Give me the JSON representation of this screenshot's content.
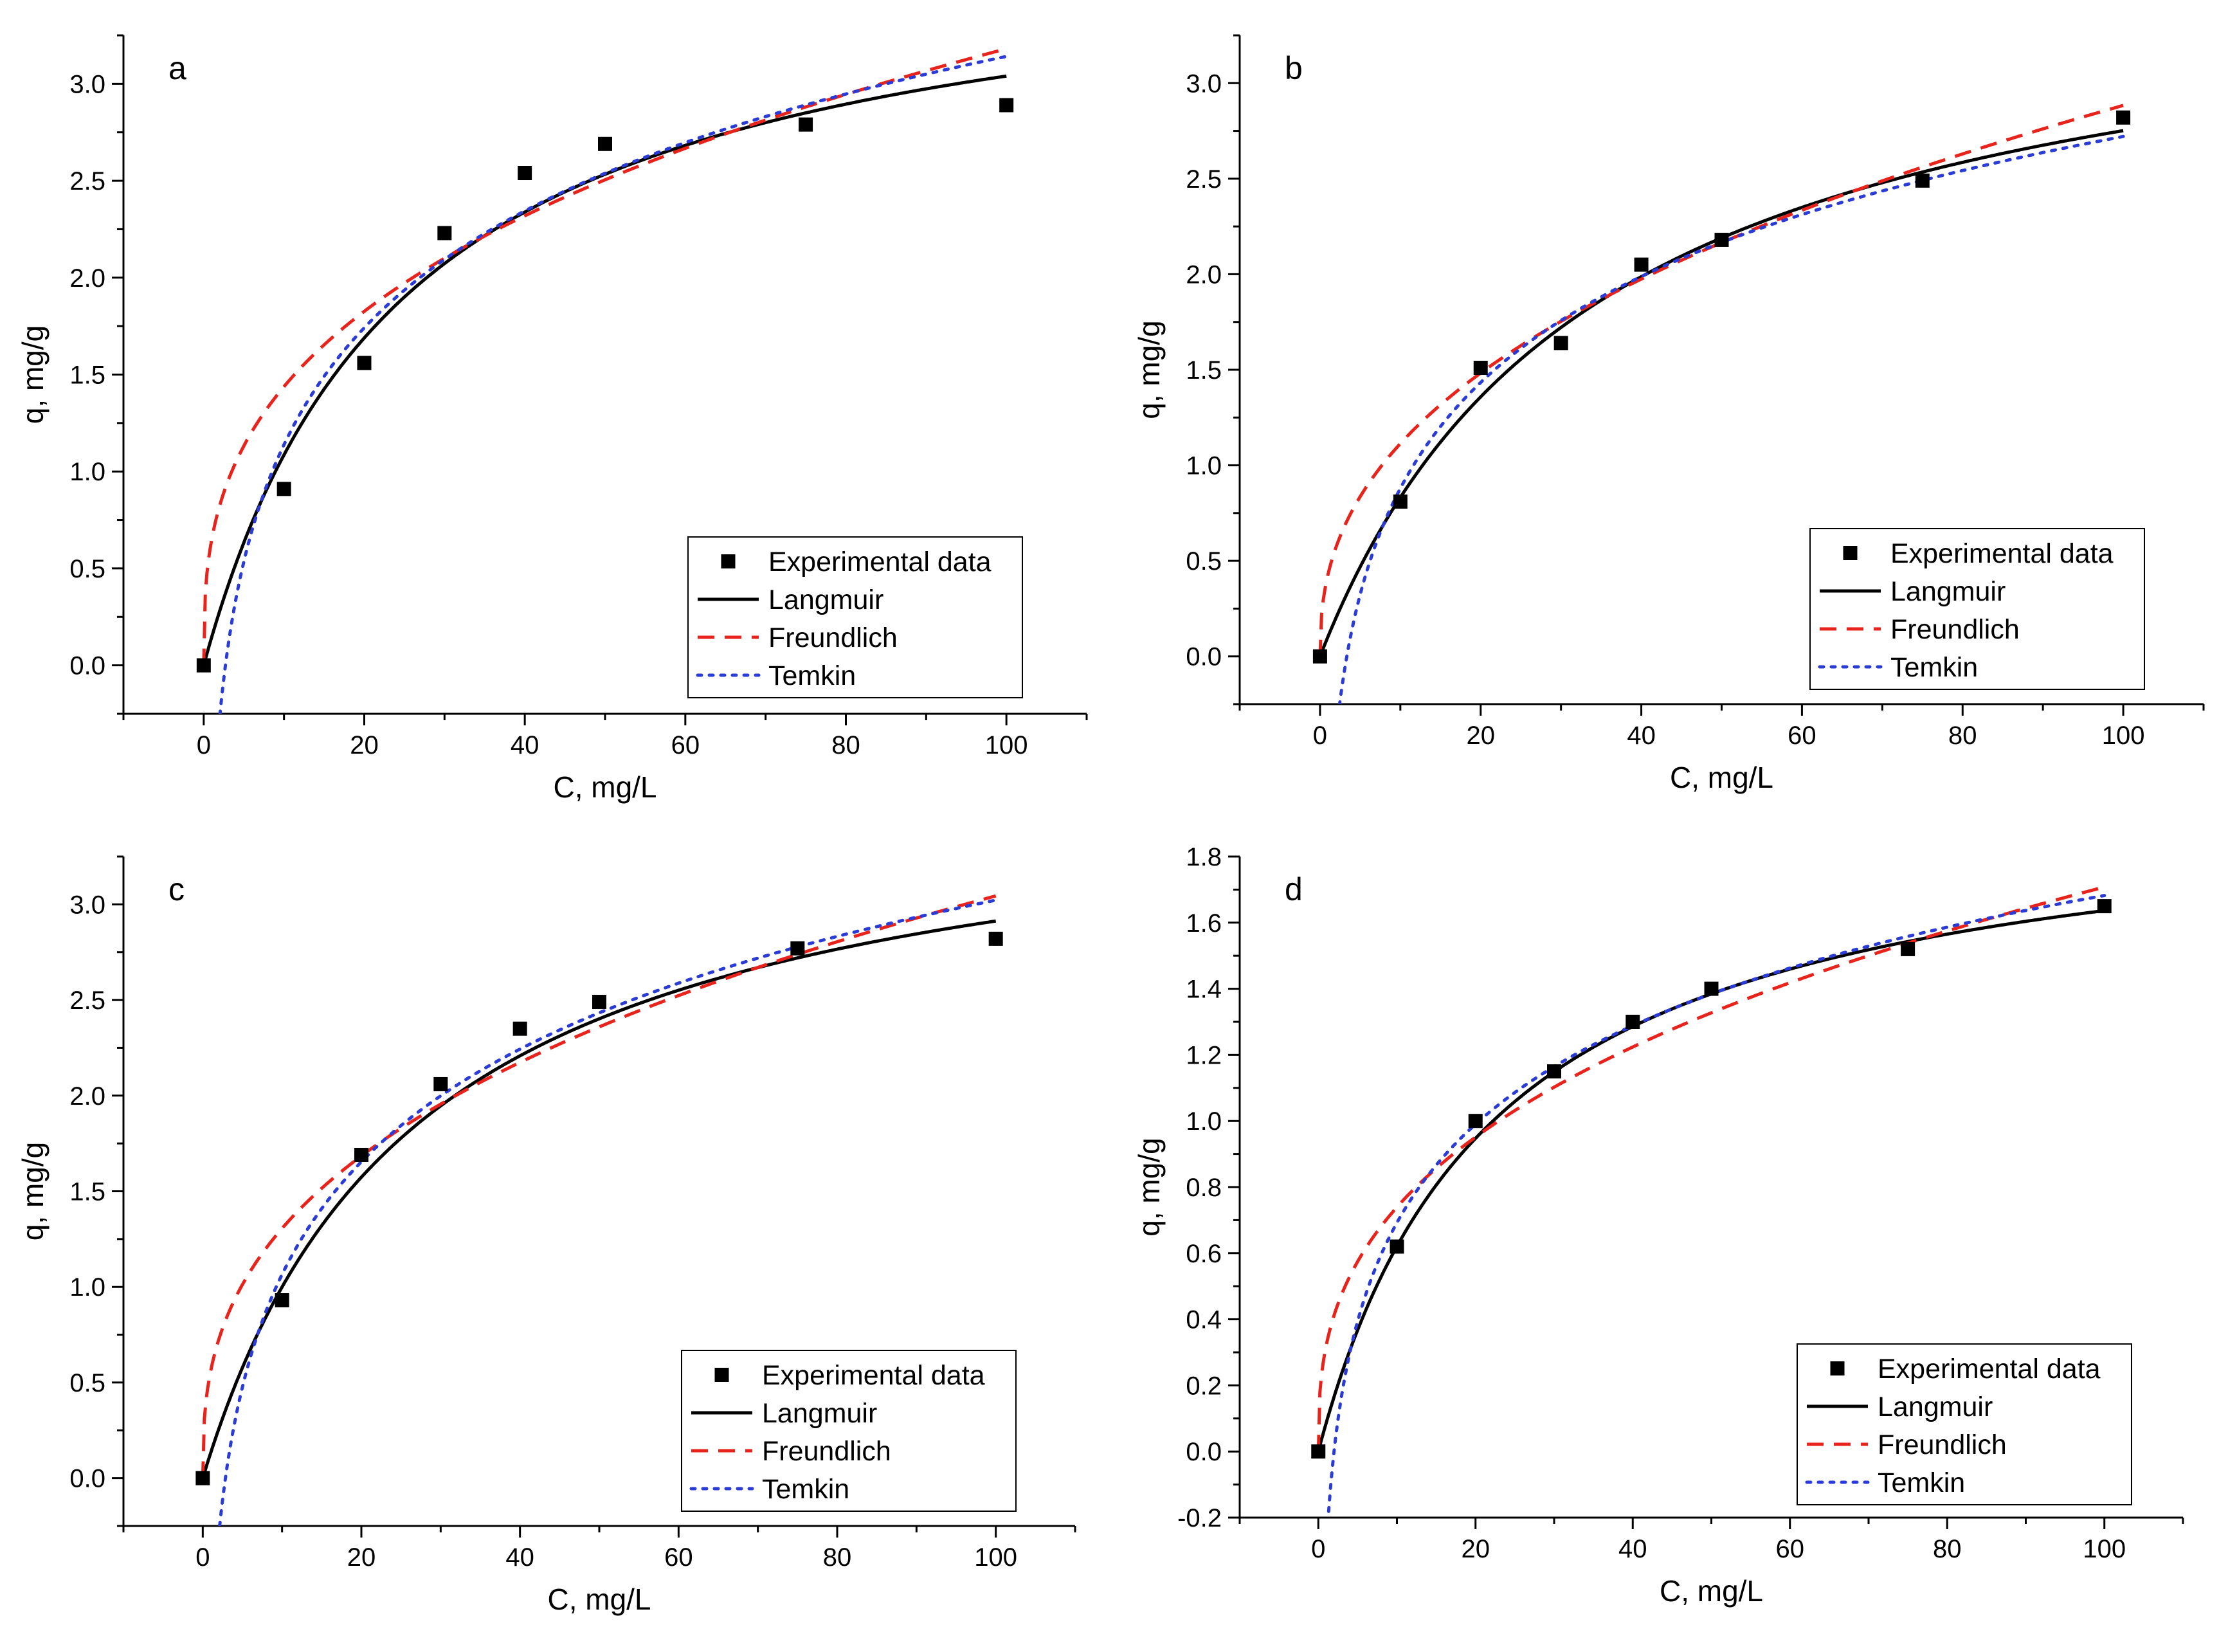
{
  "figure": {
    "background": "#ffffff"
  },
  "chart_data": [
    {
      "type": "scatter",
      "panel": "a",
      "xlabel": "C, mg/L",
      "ylabel": "q, mg/g",
      "xlim": [
        -10,
        110
      ],
      "ylim": [
        -0.25,
        3.25
      ],
      "xticks": [
        0,
        20,
        40,
        60,
        80,
        100
      ],
      "yticks": [
        0.0,
        0.5,
        1.0,
        1.5,
        2.0,
        2.5,
        3.0
      ],
      "ytick_labels": [
        "0.0",
        "0.5",
        "1.0",
        "1.5",
        "2.0",
        "2.5",
        "3.0"
      ],
      "legend_position": "bottom-right",
      "series": [
        {
          "name": "Experimental data",
          "kind": "points",
          "color": "#000000",
          "x": [
            0,
            10,
            20,
            30,
            40,
            50,
            75,
            100
          ],
          "y": [
            0.0,
            0.91,
            1.56,
            2.23,
            2.54,
            2.69,
            2.79,
            2.89
          ]
        },
        {
          "name": "Langmuir",
          "kind": "line",
          "style": "solid",
          "color": "#000000",
          "model": {
            "type": "langmuir",
            "qmax": 3.8,
            "KL": 0.04
          }
        },
        {
          "name": "Freundlich",
          "kind": "line",
          "style": "dashed",
          "color": "#e8231c",
          "model": {
            "type": "freundlich",
            "KF": 0.65,
            "n": 2.9
          }
        },
        {
          "name": "Temkin",
          "kind": "line",
          "style": "dotted",
          "color": "#2b3cd6",
          "model": {
            "type": "temkin",
            "B": 0.87,
            "KT": 0.37
          }
        }
      ]
    },
    {
      "type": "scatter",
      "panel": "b",
      "xlabel": "C, mg/L",
      "ylabel": "q, mg/g",
      "xlim": [
        -10,
        110
      ],
      "ylim": [
        -0.25,
        3.25
      ],
      "xticks": [
        0,
        20,
        40,
        60,
        80,
        100
      ],
      "yticks": [
        0.0,
        0.5,
        1.0,
        1.5,
        2.0,
        2.5,
        3.0
      ],
      "ytick_labels": [
        "0.0",
        "0.5",
        "1.0",
        "1.5",
        "2.0",
        "2.5",
        "3.0"
      ],
      "legend_position": "bottom-right",
      "series": [
        {
          "name": "Experimental data",
          "kind": "points",
          "color": "#000000",
          "x": [
            0,
            10,
            20,
            30,
            40,
            50,
            75,
            100
          ],
          "y": [
            0.0,
            0.81,
            1.51,
            1.64,
            2.05,
            2.18,
            2.49,
            2.82
          ]
        },
        {
          "name": "Langmuir",
          "kind": "line",
          "style": "solid",
          "color": "#000000",
          "model": {
            "type": "langmuir",
            "qmax": 3.7,
            "KL": 0.029
          }
        },
        {
          "name": "Freundlich",
          "kind": "line",
          "style": "dashed",
          "color": "#e8231c",
          "model": {
            "type": "freundlich",
            "KF": 0.43,
            "n": 2.42
          }
        },
        {
          "name": "Temkin",
          "kind": "line",
          "style": "dotted",
          "color": "#2b3cd6",
          "model": {
            "type": "temkin",
            "B": 0.8,
            "KT": 0.3
          }
        }
      ]
    },
    {
      "type": "scatter",
      "panel": "c",
      "xlabel": "C, mg/L",
      "ylabel": "q, mg/g",
      "xlim": [
        -10,
        110
      ],
      "ylim": [
        -0.25,
        3.25
      ],
      "xticks": [
        0,
        20,
        40,
        60,
        80,
        100
      ],
      "yticks": [
        0.0,
        0.5,
        1.0,
        1.5,
        2.0,
        2.5,
        3.0
      ],
      "ytick_labels": [
        "0.0",
        "0.5",
        "1.0",
        "1.5",
        "2.0",
        "2.5",
        "3.0"
      ],
      "legend_position": "bottom-right",
      "series": [
        {
          "name": "Experimental data",
          "kind": "points",
          "color": "#000000",
          "x": [
            0,
            10,
            20,
            30,
            40,
            50,
            75,
            100
          ],
          "y": [
            0.0,
            0.93,
            1.69,
            2.06,
            2.35,
            2.49,
            2.77,
            2.82
          ]
        },
        {
          "name": "Langmuir",
          "kind": "line",
          "style": "solid",
          "color": "#000000",
          "model": {
            "type": "langmuir",
            "qmax": 3.7,
            "KL": 0.037
          }
        },
        {
          "name": "Freundlich",
          "kind": "line",
          "style": "dashed",
          "color": "#e8231c",
          "model": {
            "type": "freundlich",
            "KF": 0.56,
            "n": 2.72
          }
        },
        {
          "name": "Temkin",
          "kind": "line",
          "style": "dotted",
          "color": "#2b3cd6",
          "model": {
            "type": "temkin",
            "B": 0.85,
            "KT": 0.35
          }
        }
      ]
    },
    {
      "type": "scatter",
      "panel": "d",
      "xlabel": "C, mg/L",
      "ylabel": "q, mg/g",
      "xlim": [
        -10,
        110
      ],
      "ylim": [
        -0.2,
        1.8
      ],
      "xticks": [
        0,
        20,
        40,
        60,
        80,
        100
      ],
      "yticks": [
        -0.2,
        0.0,
        0.2,
        0.4,
        0.6,
        0.8,
        1.0,
        1.2,
        1.4,
        1.6,
        1.8
      ],
      "ytick_labels": [
        "-0.2",
        "0.0",
        "0.2",
        "0.4",
        "0.6",
        "0.8",
        "1.0",
        "1.2",
        "1.4",
        "1.6",
        "1.8"
      ],
      "legend_position": "bottom-right",
      "series": [
        {
          "name": "Experimental data",
          "kind": "points",
          "color": "#000000",
          "x": [
            0,
            10,
            20,
            30,
            40,
            50,
            75,
            100
          ],
          "y": [
            0.0,
            0.62,
            1.0,
            1.15,
            1.3,
            1.4,
            1.52,
            1.65
          ]
        },
        {
          "name": "Langmuir",
          "kind": "line",
          "style": "solid",
          "color": "#000000",
          "model": {
            "type": "langmuir",
            "qmax": 2.0,
            "KL": 0.045
          }
        },
        {
          "name": "Freundlich",
          "kind": "line",
          "style": "dashed",
          "color": "#e8231c",
          "model": {
            "type": "freundlich",
            "KF": 0.32,
            "n": 2.75
          }
        },
        {
          "name": "Temkin",
          "kind": "line",
          "style": "dotted",
          "color": "#2b3cd6",
          "model": {
            "type": "temkin",
            "B": 0.43,
            "KT": 0.5
          }
        }
      ]
    }
  ]
}
